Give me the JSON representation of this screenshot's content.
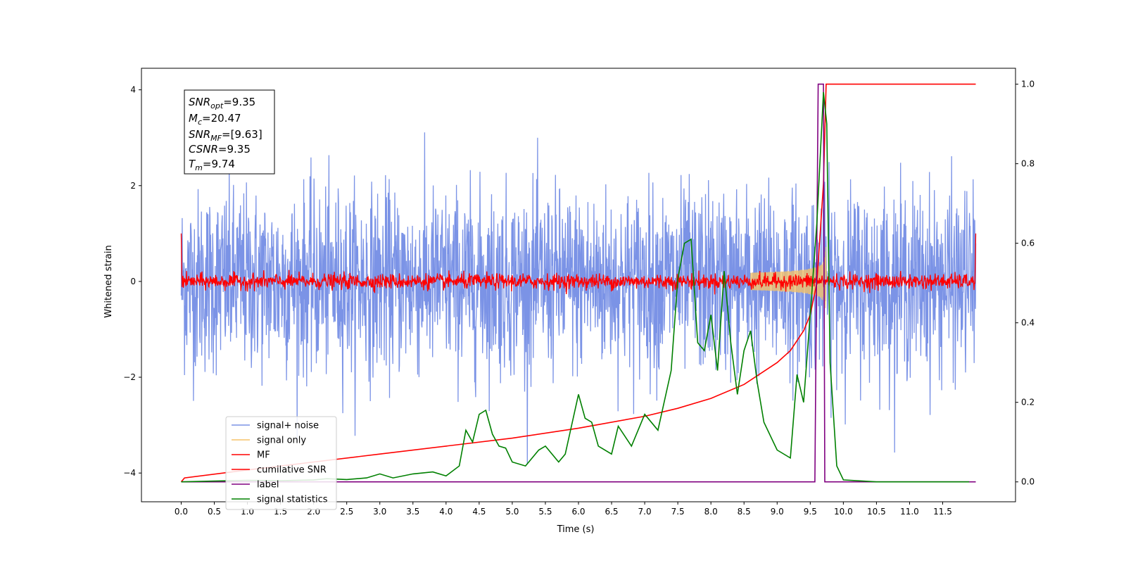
{
  "chart_data": {
    "type": "line",
    "xlabel": "Time (s)",
    "ylabel": "Whitened strain",
    "xlim": [
      -0.6,
      12.6
    ],
    "ylim": [
      -4.6,
      4.45
    ],
    "y2lim": [
      -0.05,
      1.04
    ],
    "x_ticks": [
      "0.0",
      "0.5",
      "1.0",
      "1.5",
      "2.0",
      "2.5",
      "3.0",
      "3.5",
      "4.0",
      "4.5",
      "5.0",
      "5.5",
      "6.0",
      "6.5",
      "7.0",
      "7.5",
      "8.0",
      "8.5",
      "9.0",
      "9.5",
      "10.0",
      "10.5",
      "11.0",
      "11.5"
    ],
    "y_ticks": [
      "4",
      "2",
      "0",
      "−2",
      "−4"
    ],
    "y2_ticks": [
      "1.0",
      "0.8",
      "0.6",
      "0.4",
      "0.2",
      "0.0"
    ],
    "annotation": {
      "snr_opt": {
        "base": "SNR",
        "sub": "opt",
        "value": "=9.35"
      },
      "mc": {
        "base": "M",
        "sub": "c",
        "value": "=20.47"
      },
      "snr_mf": {
        "base": "SNR",
        "sub": "MF",
        "value": "=[9.63]"
      },
      "csnr": {
        "base": "CSNR",
        "sub": "",
        "value": "=9.35"
      },
      "tm": {
        "base": "T",
        "sub": "m",
        "value": "=9.74"
      }
    },
    "legend_position": "lower-left",
    "series": [
      {
        "name": "signal+ noise",
        "color": "#7b93e6",
        "axis": "left",
        "kind": "noise",
        "x_range": [
          0,
          12
        ],
        "sigma": 0.95,
        "min": -3.9,
        "max": 4.05
      },
      {
        "name": "signal only",
        "color": "#f5c36a",
        "axis": "left",
        "kind": "chirp",
        "merger_time": 9.74,
        "peak_amplitude": 0.75
      },
      {
        "name": "MF",
        "color": "#ff0000",
        "axis": "left",
        "kind": "noise",
        "x_range": [
          0,
          12
        ],
        "sigma": 0.08,
        "edge_value": 1.0
      },
      {
        "name": "cumilative SNR",
        "color": "#ff0000",
        "axis": "right",
        "x": [
          0,
          0.05,
          1,
          2,
          3,
          4,
          5,
          6,
          7,
          7.5,
          8,
          8.5,
          9,
          9.2,
          9.4,
          9.5,
          9.6,
          9.7,
          9.74,
          10,
          11,
          12
        ],
        "y": [
          0.0,
          0.01,
          0.03,
          0.05,
          0.07,
          0.09,
          0.11,
          0.135,
          0.165,
          0.185,
          0.21,
          0.245,
          0.3,
          0.33,
          0.38,
          0.42,
          0.5,
          0.75,
          1.0,
          1.0,
          1.0,
          1.0
        ]
      },
      {
        "name": "label",
        "color": "#800080",
        "axis": "right",
        "x": [
          0,
          9.57,
          9.62,
          9.7,
          9.72,
          12
        ],
        "y": [
          0,
          0,
          1,
          1,
          0,
          0
        ]
      },
      {
        "name": "signal statistics",
        "color": "#008000",
        "axis": "right",
        "x": [
          0,
          0.5,
          1,
          1.5,
          2,
          2.2,
          2.5,
          2.8,
          3.0,
          3.2,
          3.5,
          3.8,
          4.0,
          4.2,
          4.3,
          4.4,
          4.5,
          4.6,
          4.7,
          4.8,
          4.9,
          5.0,
          5.2,
          5.4,
          5.5,
          5.7,
          5.8,
          6.0,
          6.1,
          6.2,
          6.3,
          6.5,
          6.6,
          6.8,
          7.0,
          7.2,
          7.4,
          7.5,
          7.6,
          7.7,
          7.8,
          7.9,
          8.0,
          8.1,
          8.2,
          8.3,
          8.4,
          8.5,
          8.6,
          8.7,
          8.8,
          9.0,
          9.2,
          9.3,
          9.4,
          9.5,
          9.6,
          9.7,
          9.75,
          9.8,
          9.9,
          10.0,
          10.5,
          11.0,
          11.5,
          11.9
        ],
        "y": [
          0.0,
          0.002,
          0.004,
          0.003,
          0.005,
          0.008,
          0.006,
          0.01,
          0.02,
          0.01,
          0.02,
          0.025,
          0.015,
          0.04,
          0.13,
          0.1,
          0.17,
          0.18,
          0.12,
          0.09,
          0.085,
          0.05,
          0.04,
          0.08,
          0.09,
          0.05,
          0.07,
          0.22,
          0.16,
          0.15,
          0.09,
          0.07,
          0.14,
          0.09,
          0.17,
          0.13,
          0.28,
          0.51,
          0.6,
          0.61,
          0.35,
          0.33,
          0.42,
          0.28,
          0.53,
          0.35,
          0.22,
          0.33,
          0.38,
          0.25,
          0.15,
          0.08,
          0.06,
          0.27,
          0.2,
          0.42,
          0.65,
          0.98,
          0.9,
          0.3,
          0.04,
          0.005,
          0.0,
          0.0,
          0.0,
          0.0
        ]
      }
    ]
  }
}
